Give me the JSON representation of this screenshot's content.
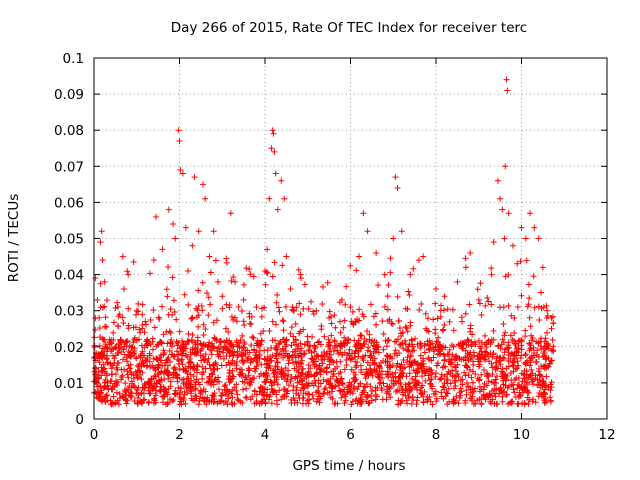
{
  "chart_data": {
    "type": "scatter",
    "title": "Day 266 of 2015, Rate Of TEC Index for receiver terc",
    "xlabel": "GPS time / hours",
    "ylabel": "ROTI / TECUs",
    "xlim": [
      0,
      12
    ],
    "ylim": [
      0,
      0.1
    ],
    "xticks": [
      "0",
      "2",
      "4",
      "6",
      "8",
      "10",
      "12"
    ],
    "yticks": [
      "0",
      "0.01",
      "0.02",
      "0.03",
      "0.04",
      "0.05",
      "0.06",
      "0.07",
      "0.08",
      "0.09",
      "0.1"
    ],
    "grid": true,
    "marker": "+",
    "color": "#ff0000",
    "x_range_of_points": [
      0,
      10.75
    ],
    "series": [
      {
        "name": "ROTI",
        "points": [
          [
            0.05,
            0.014
          ],
          [
            0.08,
            0.033
          ],
          [
            0.12,
            0.028
          ],
          [
            0.15,
            0.049
          ],
          [
            0.18,
            0.052
          ],
          [
            0.2,
            0.044
          ],
          [
            0.25,
            0.038
          ],
          [
            0.3,
            0.012
          ],
          [
            0.6,
            0.029
          ],
          [
            0.7,
            0.036
          ],
          [
            0.8,
            0.04
          ],
          [
            1.0,
            0.03
          ],
          [
            1.2,
            0.027
          ],
          [
            1.4,
            0.044
          ],
          [
            1.45,
            0.056
          ],
          [
            1.6,
            0.047
          ],
          [
            1.75,
            0.058
          ],
          [
            1.85,
            0.054
          ],
          [
            1.9,
            0.05
          ],
          [
            1.98,
            0.08
          ],
          [
            2.0,
            0.077
          ],
          [
            2.02,
            0.069
          ],
          [
            2.08,
            0.068
          ],
          [
            2.15,
            0.053
          ],
          [
            2.2,
            0.041
          ],
          [
            2.3,
            0.048
          ],
          [
            2.35,
            0.067
          ],
          [
            2.45,
            0.052
          ],
          [
            2.55,
            0.065
          ],
          [
            2.6,
            0.061
          ],
          [
            2.7,
            0.045
          ],
          [
            2.8,
            0.052
          ],
          [
            2.9,
            0.038
          ],
          [
            3.0,
            0.034
          ],
          [
            3.2,
            0.057
          ],
          [
            3.3,
            0.038
          ],
          [
            3.5,
            0.033
          ],
          [
            3.8,
            0.031
          ],
          [
            4.0,
            0.041
          ],
          [
            4.05,
            0.047
          ],
          [
            4.1,
            0.061
          ],
          [
            4.15,
            0.075
          ],
          [
            4.18,
            0.08
          ],
          [
            4.2,
            0.079
          ],
          [
            4.22,
            0.074
          ],
          [
            4.25,
            0.068
          ],
          [
            4.3,
            0.058
          ],
          [
            4.38,
            0.066
          ],
          [
            4.45,
            0.061
          ],
          [
            4.5,
            0.045
          ],
          [
            4.6,
            0.036
          ],
          [
            4.8,
            0.032
          ],
          [
            5.2,
            0.03
          ],
          [
            5.5,
            0.028
          ],
          [
            5.8,
            0.033
          ],
          [
            6.0,
            0.031
          ],
          [
            6.2,
            0.045
          ],
          [
            6.3,
            0.057
          ],
          [
            6.4,
            0.052
          ],
          [
            6.6,
            0.046
          ],
          [
            6.8,
            0.04
          ],
          [
            7.0,
            0.05
          ],
          [
            7.05,
            0.067
          ],
          [
            7.1,
            0.064
          ],
          [
            7.2,
            0.052
          ],
          [
            7.4,
            0.04
          ],
          [
            7.6,
            0.044
          ],
          [
            7.7,
            0.045
          ],
          [
            8.0,
            0.036
          ],
          [
            8.2,
            0.034
          ],
          [
            8.5,
            0.038
          ],
          [
            8.7,
            0.042
          ],
          [
            8.8,
            0.046
          ],
          [
            9.0,
            0.033
          ],
          [
            9.3,
            0.04
          ],
          [
            9.35,
            0.049
          ],
          [
            9.45,
            0.066
          ],
          [
            9.5,
            0.061
          ],
          [
            9.55,
            0.058
          ],
          [
            9.6,
            0.05
          ],
          [
            9.62,
            0.07
          ],
          [
            9.65,
            0.094
          ],
          [
            9.67,
            0.091
          ],
          [
            9.7,
            0.057
          ],
          [
            9.8,
            0.048
          ],
          [
            9.9,
            0.043
          ],
          [
            10.0,
            0.053
          ],
          [
            10.1,
            0.05
          ],
          [
            10.2,
            0.057
          ],
          [
            10.3,
            0.053
          ],
          [
            10.4,
            0.05
          ],
          [
            10.5,
            0.042
          ],
          [
            10.6,
            0.03
          ],
          [
            10.7,
            0.028
          ]
        ]
      }
    ]
  }
}
